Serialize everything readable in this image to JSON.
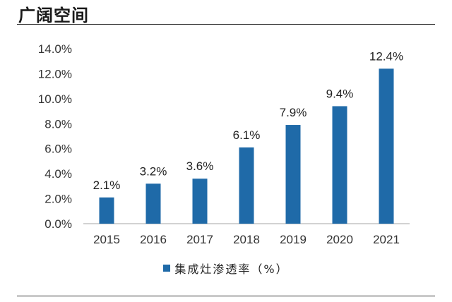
{
  "header": {
    "title": "广阔空间"
  },
  "colors": {
    "bar": "#1f6aa8",
    "axis": "#a6a6a6",
    "rule": "#333333"
  },
  "chart_data": {
    "type": "bar",
    "title": "",
    "xlabel": "",
    "ylabel": "",
    "categories": [
      "2015",
      "2016",
      "2017",
      "2018",
      "2019",
      "2020",
      "2021"
    ],
    "series": [
      {
        "name": "集成灶渗透率（%）",
        "values": [
          2.1,
          3.2,
          3.6,
          6.1,
          7.9,
          9.4,
          12.4
        ]
      }
    ],
    "data_labels": [
      "2.1%",
      "3.2%",
      "3.6%",
      "6.1%",
      "7.9%",
      "9.4%",
      "12.4%"
    ],
    "y_ticks": [
      "0.0%",
      "2.0%",
      "4.0%",
      "6.0%",
      "8.0%",
      "10.0%",
      "12.0%",
      "14.0%"
    ],
    "ylim": [
      0,
      14
    ],
    "grid": false,
    "legend_position": "bottom"
  }
}
